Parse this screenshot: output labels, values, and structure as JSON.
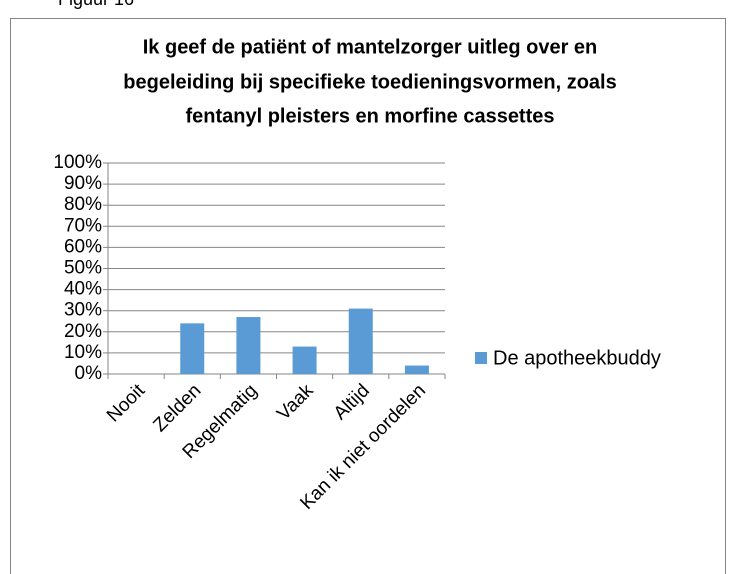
{
  "figure_label": "Figuur 16",
  "chart_data": {
    "type": "bar",
    "title_lines": [
      "Ik geef de patiënt of mantelzorger uitleg over en",
      "begeleiding bij specifieke toedieningsvormen, zoals",
      "fentanyl pleisters en morfine cassettes"
    ],
    "categories": [
      "Nooit",
      "Zelden",
      "Regelmatig",
      "Vaak",
      "Altijd",
      "Kan ik niet oordelen"
    ],
    "series": [
      {
        "name": "De apotheekbuddy",
        "color": "#5b9bd5",
        "values": [
          0,
          24,
          27,
          13,
          31,
          4
        ]
      }
    ],
    "ylim": [
      0,
      100
    ],
    "yticks": [
      {
        "value": 0,
        "label": "0%"
      },
      {
        "value": 10,
        "label": "10%"
      },
      {
        "value": 20,
        "label": "20%"
      },
      {
        "value": 30,
        "label": "30%"
      },
      {
        "value": 40,
        "label": "40%"
      },
      {
        "value": 50,
        "label": "50%"
      },
      {
        "value": 60,
        "label": "60%"
      },
      {
        "value": 70,
        "label": "70%"
      },
      {
        "value": 80,
        "label": "80%"
      },
      {
        "value": 90,
        "label": "90%"
      },
      {
        "value": 100,
        "label": "100%"
      }
    ],
    "grid": true,
    "legend": "right"
  }
}
